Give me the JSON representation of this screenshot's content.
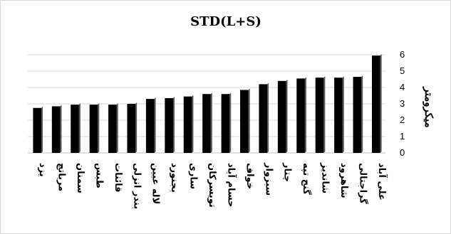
{
  "chart_data": {
    "type": "bar",
    "title": "STD(L+S)",
    "ylabel": "میکرومتر",
    "xlabel": "",
    "ylim": [
      0,
      6
    ],
    "yticks": [
      0,
      1,
      2,
      3,
      4,
      5,
      6
    ],
    "grid": true,
    "y_axis_side": "right",
    "categories": [
      "یزد",
      "مرباتچ",
      "سمنان",
      "طبس",
      "قائنات",
      "بندر انزلی",
      "لاله عیین",
      "بجنورد",
      "ساری",
      "تویسرکان",
      "حسام آباد",
      "خواف",
      "سبزوار",
      "چنار",
      "گنج تپه",
      "شاندیز",
      "شاهرود",
      "گراجتالی",
      "علی آباد"
    ],
    "values": [
      2.75,
      2.85,
      2.95,
      2.95,
      2.95,
      3.0,
      3.3,
      3.35,
      3.45,
      3.6,
      3.6,
      3.85,
      4.2,
      4.4,
      4.55,
      4.6,
      4.6,
      4.65,
      5.95
    ],
    "colors": {
      "bar": "#000000",
      "grid": "#d9d9d9"
    }
  }
}
